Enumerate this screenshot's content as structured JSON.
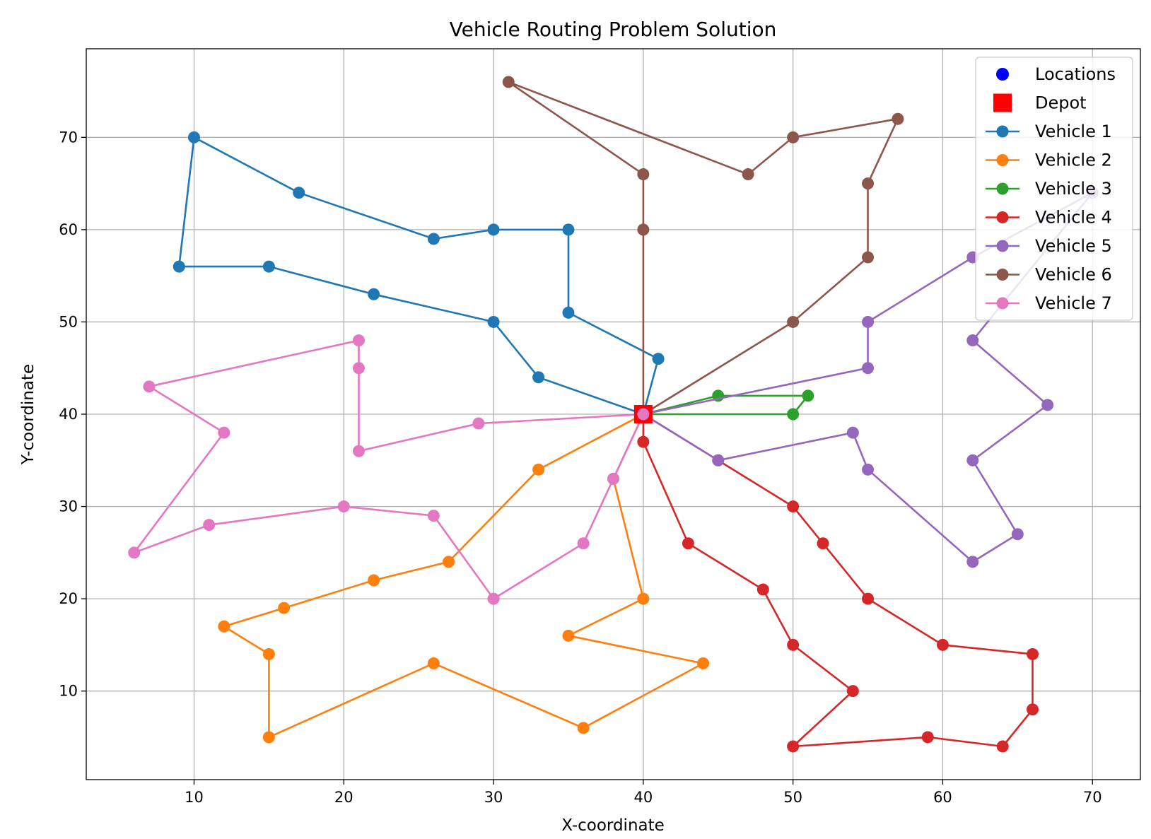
{
  "chart_data": {
    "type": "line",
    "title": "Vehicle Routing Problem Solution",
    "xlabel": "X-coordinate",
    "ylabel": "Y-coordinate",
    "xlim": [
      2.8,
      73.2
    ],
    "ylim": [
      0.4,
      79.6
    ],
    "xticks": [
      10,
      20,
      30,
      40,
      50,
      60,
      70
    ],
    "yticks": [
      10,
      20,
      30,
      40,
      50,
      60,
      70
    ],
    "grid": true,
    "legend_position": "top-right",
    "legend": [
      {
        "label": "Locations",
        "kind": "scatter",
        "color": "#0000ff"
      },
      {
        "label": "Depot",
        "kind": "square",
        "color": "#ff0000"
      },
      {
        "label": "Vehicle 1",
        "kind": "line",
        "color": "#1f77b4"
      },
      {
        "label": "Vehicle 2",
        "kind": "line",
        "color": "#ff7f0e"
      },
      {
        "label": "Vehicle 3",
        "kind": "line",
        "color": "#2ca02c"
      },
      {
        "label": "Vehicle 4",
        "kind": "line",
        "color": "#d62728"
      },
      {
        "label": "Vehicle 5",
        "kind": "line",
        "color": "#9467bd"
      },
      {
        "label": "Vehicle 6",
        "kind": "line",
        "color": "#8c564b"
      },
      {
        "label": "Vehicle 7",
        "kind": "line",
        "color": "#e377c2"
      }
    ],
    "depot": {
      "x": 40,
      "y": 40
    },
    "series": [
      {
        "name": "Vehicle 1",
        "color": "#1f77b4",
        "points": [
          [
            40,
            40
          ],
          [
            33,
            44
          ],
          [
            30,
            50
          ],
          [
            22,
            53
          ],
          [
            15,
            56
          ],
          [
            9,
            56
          ],
          [
            10,
            70
          ],
          [
            17,
            64
          ],
          [
            26,
            59
          ],
          [
            30,
            60
          ],
          [
            35,
            60
          ],
          [
            35,
            51
          ],
          [
            41,
            46
          ],
          [
            40,
            40
          ]
        ]
      },
      {
        "name": "Vehicle 2",
        "color": "#ff7f0e",
        "points": [
          [
            40,
            40
          ],
          [
            33,
            34
          ],
          [
            27,
            24
          ],
          [
            22,
            22
          ],
          [
            16,
            19
          ],
          [
            12,
            17
          ],
          [
            15,
            14
          ],
          [
            15,
            5
          ],
          [
            26,
            13
          ],
          [
            36,
            6
          ],
          [
            44,
            13
          ],
          [
            35,
            16
          ],
          [
            40,
            20
          ],
          [
            38,
            33
          ],
          [
            40,
            40
          ]
        ]
      },
      {
        "name": "Vehicle 3",
        "color": "#2ca02c",
        "points": [
          [
            40,
            40
          ],
          [
            45,
            42
          ],
          [
            51,
            42
          ],
          [
            50,
            40
          ],
          [
            40,
            40
          ]
        ]
      },
      {
        "name": "Vehicle 4",
        "color": "#d62728",
        "points": [
          [
            40,
            40
          ],
          [
            40,
            37
          ],
          [
            43,
            26
          ],
          [
            48,
            21
          ],
          [
            50,
            15
          ],
          [
            54,
            10
          ],
          [
            50,
            4
          ],
          [
            59,
            5
          ],
          [
            64,
            4
          ],
          [
            66,
            8
          ],
          [
            66,
            14
          ],
          [
            60,
            15
          ],
          [
            55,
            20
          ],
          [
            52,
            26
          ],
          [
            50,
            30
          ],
          [
            45,
            35
          ],
          [
            40,
            40
          ]
        ]
      },
      {
        "name": "Vehicle 5",
        "color": "#9467bd",
        "points": [
          [
            40,
            40
          ],
          [
            55,
            45
          ],
          [
            55,
            50
          ],
          [
            62,
            57
          ],
          [
            70,
            64
          ],
          [
            62,
            48
          ],
          [
            67,
            41
          ],
          [
            62,
            35
          ],
          [
            65,
            27
          ],
          [
            62,
            24
          ],
          [
            55,
            34
          ],
          [
            54,
            38
          ],
          [
            45,
            35
          ],
          [
            40,
            40
          ]
        ]
      },
      {
        "name": "Vehicle 6",
        "color": "#8c564b",
        "points": [
          [
            40,
            40
          ],
          [
            50,
            50
          ],
          [
            55,
            57
          ],
          [
            55,
            65
          ],
          [
            57,
            72
          ],
          [
            50,
            70
          ],
          [
            47,
            66
          ],
          [
            31,
            76
          ],
          [
            40,
            66
          ],
          [
            40,
            60
          ],
          [
            40,
            40
          ]
        ]
      },
      {
        "name": "Vehicle 7",
        "color": "#e377c2",
        "points": [
          [
            40,
            40
          ],
          [
            29,
            39
          ],
          [
            21,
            36
          ],
          [
            21,
            45
          ],
          [
            21,
            48
          ],
          [
            7,
            43
          ],
          [
            12,
            38
          ],
          [
            6,
            25
          ],
          [
            11,
            28
          ],
          [
            20,
            30
          ],
          [
            26,
            29
          ],
          [
            30,
            20
          ],
          [
            36,
            26
          ],
          [
            38,
            33
          ],
          [
            40,
            40
          ]
        ]
      }
    ]
  }
}
